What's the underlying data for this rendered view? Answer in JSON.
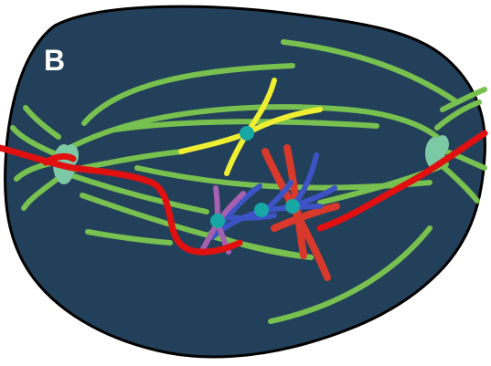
{
  "figure": {
    "panel_label": "B"
  },
  "colors": {
    "cell_fill": "#23405a",
    "cell_outline": "#000000",
    "spindle_fiber": "#78c04f",
    "centrosome": "#7cc9a6",
    "kinetochore": "#17a8a6",
    "red_structure": "#e01010",
    "red_chromosome": "#d8392b",
    "yellow_chromosome": "#eeee33",
    "blue_chromosome": "#3c53c4",
    "purple_chromosome": "#a560b0"
  }
}
